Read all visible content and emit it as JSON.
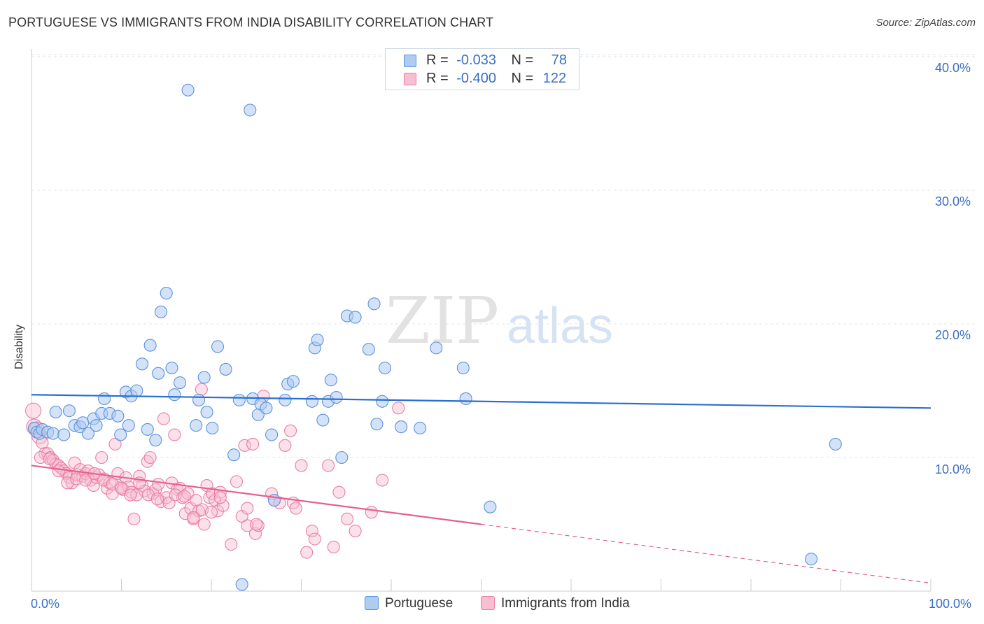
{
  "header": {
    "title": "PORTUGUESE VS IMMIGRANTS FROM INDIA DISABILITY CORRELATION CHART",
    "source": "Source: ZipAtlas.com"
  },
  "watermark": {
    "text_zip": "ZIP",
    "text_atlas": "atlas"
  },
  "legend": {
    "rows": [
      {
        "r_label": "R =",
        "r_value": "-0.033",
        "n_label": "N =",
        "n_value": "78"
      },
      {
        "r_label": "R =",
        "r_value": "-0.400",
        "n_label": "N =",
        "n_value": "122"
      }
    ]
  },
  "bottom_legend": {
    "series1": "Portuguese",
    "series2": "Immigrants from India"
  },
  "axes": {
    "y_title": "Disability",
    "x_min_label": "0.0%",
    "x_max_label": "100.0%",
    "y_ticks": [
      "10.0%",
      "20.0%",
      "30.0%",
      "40.0%"
    ]
  },
  "colors": {
    "blue_fill": "#aecbf2",
    "blue_stroke": "#5b93dc",
    "blue_line": "#2a6fd0",
    "pink_fill": "#f7bfd1",
    "pink_stroke": "#ea7ea3",
    "pink_line": "#e4608e",
    "grid": "#dfe4ea",
    "tick_label": "#3a6fc4"
  },
  "chart_data": {
    "type": "scatter",
    "title": "PORTUGUESE VS IMMIGRANTS FROM INDIA DISABILITY CORRELATION CHART",
    "xlabel": "",
    "ylabel": "Disability",
    "xlim": [
      0,
      100
    ],
    "ylim": [
      0,
      41.5
    ],
    "y_ticks": [
      10,
      20,
      30,
      40
    ],
    "grid": true,
    "legend_position": "top-center",
    "series": [
      {
        "name": "Portuguese",
        "r": -0.033,
        "n": 78,
        "trend": {
          "x": [
            0,
            100
          ],
          "y": [
            14.7,
            13.7
          ]
        },
        "points": [
          [
            0.3,
            12.2
          ],
          [
            0.6,
            11.9
          ],
          [
            0.9,
            11.8
          ],
          [
            1.2,
            12.1
          ],
          [
            1.8,
            11.9
          ],
          [
            2.4,
            11.8
          ],
          [
            2.7,
            13.4
          ],
          [
            3.6,
            11.7
          ],
          [
            4.2,
            13.5
          ],
          [
            4.8,
            12.4
          ],
          [
            5.4,
            12.3
          ],
          [
            5.7,
            12.6
          ],
          [
            6.3,
            11.8
          ],
          [
            6.9,
            12.9
          ],
          [
            7.2,
            12.4
          ],
          [
            7.8,
            13.3
          ],
          [
            8.1,
            14.4
          ],
          [
            8.7,
            13.3
          ],
          [
            9.6,
            13.1
          ],
          [
            9.9,
            11.7
          ],
          [
            10.5,
            14.9
          ],
          [
            10.8,
            12.4
          ],
          [
            11.1,
            14.6
          ],
          [
            11.7,
            15.0
          ],
          [
            12.3,
            17.0
          ],
          [
            12.9,
            12.1
          ],
          [
            13.2,
            18.4
          ],
          [
            13.8,
            11.3
          ],
          [
            14.1,
            16.3
          ],
          [
            14.4,
            20.9
          ],
          [
            15.0,
            22.3
          ],
          [
            15.6,
            16.7
          ],
          [
            15.9,
            14.7
          ],
          [
            16.5,
            15.6
          ],
          [
            17.4,
            37.5
          ],
          [
            18.3,
            12.4
          ],
          [
            18.6,
            14.3
          ],
          [
            19.2,
            16.0
          ],
          [
            19.5,
            13.4
          ],
          [
            20.1,
            12.2
          ],
          [
            20.7,
            18.3
          ],
          [
            21.6,
            16.6
          ],
          [
            22.5,
            10.2
          ],
          [
            23.1,
            14.3
          ],
          [
            23.4,
            0.5
          ],
          [
            24.3,
            36.0
          ],
          [
            24.6,
            14.4
          ],
          [
            25.2,
            13.2
          ],
          [
            25.5,
            14.0
          ],
          [
            26.1,
            13.7
          ],
          [
            26.7,
            11.7
          ],
          [
            27.0,
            6.8
          ],
          [
            28.2,
            14.3
          ],
          [
            28.5,
            15.5
          ],
          [
            29.1,
            15.7
          ],
          [
            31.2,
            14.2
          ],
          [
            31.5,
            18.2
          ],
          [
            31.8,
            18.8
          ],
          [
            32.4,
            12.8
          ],
          [
            33.0,
            14.2
          ],
          [
            33.3,
            15.8
          ],
          [
            33.9,
            14.5
          ],
          [
            34.5,
            10.0
          ],
          [
            35.1,
            20.6
          ],
          [
            36.0,
            20.5
          ],
          [
            37.5,
            18.1
          ],
          [
            38.1,
            21.5
          ],
          [
            38.4,
            12.5
          ],
          [
            39.0,
            14.2
          ],
          [
            39.3,
            16.7
          ],
          [
            41.1,
            12.3
          ],
          [
            43.2,
            12.2
          ],
          [
            45.0,
            18.2
          ],
          [
            48.0,
            16.7
          ],
          [
            48.3,
            14.4
          ],
          [
            51.0,
            6.3
          ],
          [
            86.7,
            2.4
          ],
          [
            89.4,
            11.0
          ]
        ]
      },
      {
        "name": "Immigrants from India",
        "r": -0.4,
        "n": 122,
        "trend": {
          "x": [
            0,
            50
          ],
          "y": [
            9.4,
            5.0
          ]
        },
        "trend_dashed": {
          "x": [
            50,
            100
          ],
          "y": [
            5.0,
            0.6
          ]
        },
        "points": [
          [
            0.2,
            13.5
          ],
          [
            0.3,
            12.3
          ],
          [
            0.6,
            12.1
          ],
          [
            0.9,
            11.6
          ],
          [
            1.2,
            11.1
          ],
          [
            1.5,
            10.3
          ],
          [
            1.8,
            10.3
          ],
          [
            2.1,
            10.0
          ],
          [
            2.4,
            9.8
          ],
          [
            2.7,
            9.5
          ],
          [
            3.0,
            9.4
          ],
          [
            3.3,
            9.2
          ],
          [
            3.6,
            9.0
          ],
          [
            3.9,
            8.8
          ],
          [
            4.2,
            8.5
          ],
          [
            4.5,
            8.1
          ],
          [
            4.8,
            9.6
          ],
          [
            5.1,
            8.7
          ],
          [
            5.4,
            9.1
          ],
          [
            5.7,
            8.6
          ],
          [
            6.0,
            8.8
          ],
          [
            6.3,
            9.0
          ],
          [
            6.6,
            8.3
          ],
          [
            6.9,
            7.9
          ],
          [
            7.2,
            8.5
          ],
          [
            7.5,
            8.7
          ],
          [
            7.8,
            10.0
          ],
          [
            8.1,
            8.4
          ],
          [
            8.4,
            7.7
          ],
          [
            8.7,
            8.1
          ],
          [
            9.0,
            7.3
          ],
          [
            9.3,
            11.0
          ],
          [
            9.6,
            8.8
          ],
          [
            9.9,
            7.8
          ],
          [
            10.2,
            7.6
          ],
          [
            10.5,
            8.5
          ],
          [
            10.8,
            7.8
          ],
          [
            11.1,
            7.4
          ],
          [
            11.4,
            5.4
          ],
          [
            11.7,
            7.2
          ],
          [
            12.0,
            8.6
          ],
          [
            12.3,
            7.9
          ],
          [
            12.6,
            7.5
          ],
          [
            12.9,
            9.7
          ],
          [
            13.2,
            10.0
          ],
          [
            13.5,
            7.3
          ],
          [
            13.8,
            7.6
          ],
          [
            14.1,
            8.0
          ],
          [
            14.4,
            6.7
          ],
          [
            14.7,
            12.9
          ],
          [
            15.0,
            7.0
          ],
          [
            15.3,
            6.6
          ],
          [
            15.6,
            8.1
          ],
          [
            15.9,
            11.7
          ],
          [
            16.2,
            7.6
          ],
          [
            16.5,
            7.7
          ],
          [
            16.8,
            7.0
          ],
          [
            17.1,
            5.8
          ],
          [
            17.4,
            7.3
          ],
          [
            17.7,
            6.2
          ],
          [
            18.0,
            5.4
          ],
          [
            18.3,
            6.8
          ],
          [
            18.6,
            6.0
          ],
          [
            18.9,
            15.1
          ],
          [
            19.2,
            5.0
          ],
          [
            19.5,
            7.9
          ],
          [
            19.8,
            7.0
          ],
          [
            20.1,
            7.3
          ],
          [
            20.4,
            6.8
          ],
          [
            20.7,
            6.0
          ],
          [
            21.0,
            7.4
          ],
          [
            21.3,
            6.4
          ],
          [
            22.2,
            3.5
          ],
          [
            22.8,
            8.2
          ],
          [
            23.4,
            5.6
          ],
          [
            23.7,
            10.9
          ],
          [
            24.0,
            6.2
          ],
          [
            24.6,
            11.0
          ],
          [
            24.9,
            4.3
          ],
          [
            25.2,
            4.9
          ],
          [
            25.8,
            14.6
          ],
          [
            26.7,
            7.3
          ],
          [
            27.0,
            6.8
          ],
          [
            27.6,
            6.6
          ],
          [
            28.2,
            10.9
          ],
          [
            28.8,
            12.0
          ],
          [
            29.1,
            6.6
          ],
          [
            29.4,
            6.2
          ],
          [
            30.0,
            9.4
          ],
          [
            30.6,
            2.9
          ],
          [
            31.2,
            4.5
          ],
          [
            31.5,
            3.9
          ],
          [
            33.0,
            9.4
          ],
          [
            33.6,
            3.3
          ],
          [
            34.2,
            7.4
          ],
          [
            35.1,
            5.4
          ],
          [
            36.0,
            4.5
          ],
          [
            37.8,
            5.9
          ],
          [
            39.0,
            8.3
          ],
          [
            40.8,
            13.7
          ],
          [
            1.0,
            10.0
          ],
          [
            2.0,
            9.9
          ],
          [
            3.0,
            9.0
          ],
          [
            4.0,
            8.1
          ],
          [
            5.0,
            8.4
          ],
          [
            6.0,
            8.3
          ],
          [
            7.0,
            8.8
          ],
          [
            8.0,
            8.3
          ],
          [
            9.0,
            8.0
          ],
          [
            10.0,
            7.7
          ],
          [
            11.0,
            7.2
          ],
          [
            12.0,
            8.1
          ],
          [
            13.0,
            7.2
          ],
          [
            14.0,
            6.9
          ],
          [
            16.0,
            7.2
          ],
          [
            17.0,
            7.1
          ],
          [
            18.0,
            5.5
          ],
          [
            19.0,
            6.1
          ],
          [
            20.0,
            5.9
          ],
          [
            21.0,
            7.0
          ],
          [
            24.0,
            4.9
          ],
          [
            25.0,
            5.0
          ]
        ]
      }
    ]
  }
}
